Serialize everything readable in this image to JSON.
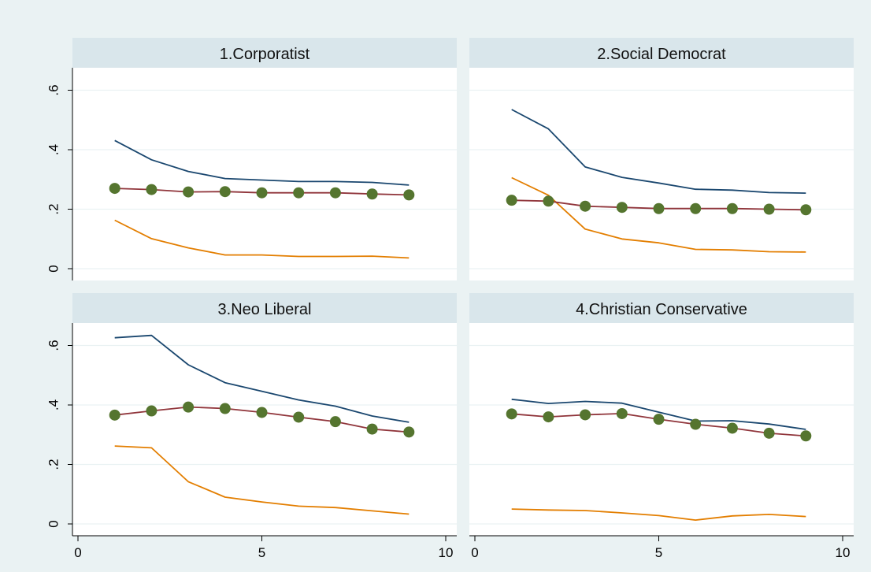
{
  "colors": {
    "background": "#eaf2f3",
    "strip": "#d9e6eb",
    "plot": "#ffffff",
    "grid": "#eaf2f3"
  },
  "chart_data": {
    "type": "line",
    "layout": "2x2 facet grid",
    "grid": true,
    "legend": "none",
    "xlim": [
      0,
      10
    ],
    "ylim": [
      0,
      0.6
    ],
    "xticks": [
      0,
      5,
      10
    ],
    "xtick_labels": [
      "0",
      "5",
      "10"
    ],
    "yticks": [
      0,
      0.2,
      0.4,
      0.6
    ],
    "ytick_labels": [
      "0",
      ".2",
      ".4",
      ".6"
    ],
    "series_styles": [
      {
        "color": "#1a476f",
        "marker": "none"
      },
      {
        "color": "#90353b",
        "marker": "circle",
        "marker_color": "#55752f"
      },
      {
        "color": "#e37e00",
        "marker": "none"
      }
    ],
    "panels": [
      {
        "title": "1.Corporatist",
        "x": [
          1,
          2,
          3,
          4,
          5,
          6,
          7,
          8,
          9
        ],
        "series": [
          {
            "values": [
              0.431,
              0.366,
              0.327,
              0.303,
              0.298,
              0.293,
              0.293,
              0.29,
              0.281
            ]
          },
          {
            "values": [
              0.27,
              0.266,
              0.258,
              0.259,
              0.255,
              0.255,
              0.255,
              0.251,
              0.248
            ]
          },
          {
            "values": [
              0.163,
              0.101,
              0.07,
              0.046,
              0.046,
              0.041,
              0.041,
              0.042,
              0.036
            ]
          }
        ]
      },
      {
        "title": "2.Social Democrat",
        "x": [
          1,
          2,
          3,
          4,
          5,
          6,
          7,
          8,
          9
        ],
        "series": [
          {
            "values": [
              0.535,
              0.47,
              0.342,
              0.307,
              0.288,
              0.267,
              0.264,
              0.256,
              0.254
            ]
          },
          {
            "values": [
              0.23,
              0.227,
              0.21,
              0.206,
              0.202,
              0.202,
              0.202,
              0.2,
              0.198
            ]
          },
          {
            "values": [
              0.306,
              0.247,
              0.133,
              0.1,
              0.087,
              0.065,
              0.063,
              0.057,
              0.056
            ]
          }
        ]
      },
      {
        "title": "3.Neo Liberal",
        "x": [
          1,
          2,
          3,
          4,
          5,
          6,
          7,
          8,
          9
        ],
        "series": [
          {
            "values": [
              0.626,
              0.634,
              0.535,
              0.475,
              0.446,
              0.417,
              0.396,
              0.363,
              0.342
            ]
          },
          {
            "values": [
              0.366,
              0.38,
              0.393,
              0.388,
              0.375,
              0.359,
              0.344,
              0.319,
              0.309
            ]
          },
          {
            "values": [
              0.262,
              0.256,
              0.142,
              0.09,
              0.074,
              0.06,
              0.055,
              0.044,
              0.033
            ]
          }
        ]
      },
      {
        "title": "4.Christian Conservative",
        "x": [
          1,
          2,
          3,
          4,
          5,
          6,
          7,
          8,
          9
        ],
        "series": [
          {
            "values": [
              0.419,
              0.405,
              0.412,
              0.406,
              0.376,
              0.346,
              0.347,
              0.336,
              0.318
            ]
          },
          {
            "values": [
              0.37,
              0.36,
              0.367,
              0.371,
              0.352,
              0.335,
              0.322,
              0.305,
              0.296
            ]
          },
          {
            "values": [
              0.05,
              0.047,
              0.045,
              0.037,
              0.028,
              0.013,
              0.027,
              0.032,
              0.025
            ]
          }
        ]
      }
    ]
  }
}
